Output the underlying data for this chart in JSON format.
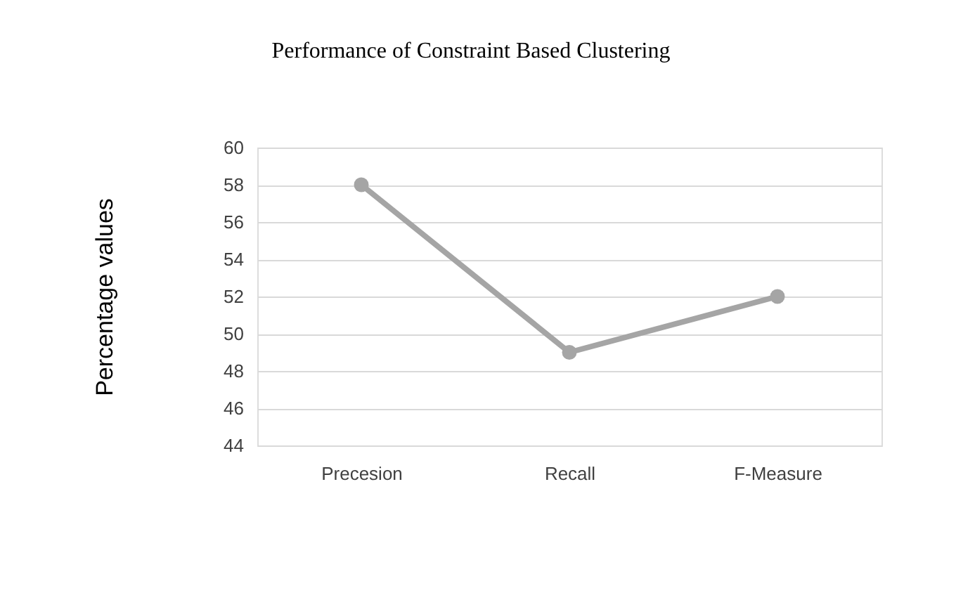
{
  "chart_data": {
    "type": "line",
    "title": "Performance of Constraint Based Clustering",
    "ylabel": "Percentage values",
    "categories": [
      "Precesion",
      "Recall",
      "F-Measure"
    ],
    "series": [
      {
        "color": "#a5a5a5",
        "values": [
          58,
          49,
          52
        ]
      }
    ],
    "ylim": [
      44,
      60
    ],
    "yticks": [
      44,
      46,
      48,
      50,
      52,
      54,
      56,
      58,
      60
    ],
    "grid": "y",
    "marker": "circle",
    "line_style": "solid"
  }
}
